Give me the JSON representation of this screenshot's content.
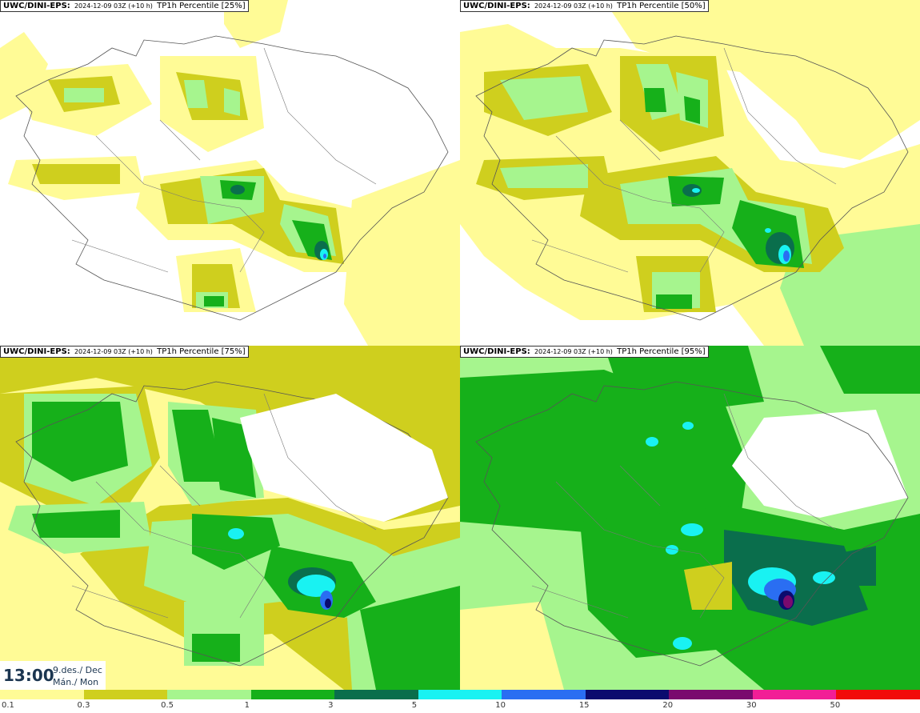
{
  "panels": [
    {
      "model": "UWC/DINI-EPS:",
      "run": "2024-12-09 03Z (+10 h)",
      "field": "TP1h Percentile [25%]"
    },
    {
      "model": "UWC/DINI-EPS:",
      "run": "2024-12-09 03Z (+10 h)",
      "field": "TP1h Percentile [50%]"
    },
    {
      "model": "UWC/DINI-EPS:",
      "run": "2024-12-09 03Z (+10 h)",
      "field": "TP1h Percentile [75%]"
    },
    {
      "model": "UWC/DINI-EPS:",
      "run": "2024-12-09 03Z (+10 h)",
      "field": "TP1h Percentile [95%]"
    }
  ],
  "valid_time": {
    "time": "13:00",
    "date_line1": "9.des./ Dec",
    "date_line2": "Mán./ Mon"
  },
  "legend": {
    "labels": [
      "0.1",
      "0.3",
      "0.5",
      "1",
      "3",
      "5",
      "10",
      "15",
      "20",
      "30",
      "50"
    ],
    "colors": [
      "#fffb96",
      "#cfcf1e",
      "#a6f58e",
      "#16b01a",
      "#0a6e4c",
      "#19f2f2",
      "#2a6ef2",
      "#0b0b6e",
      "#7a0a6e",
      "#f21e96",
      "#f20a0a"
    ]
  }
}
